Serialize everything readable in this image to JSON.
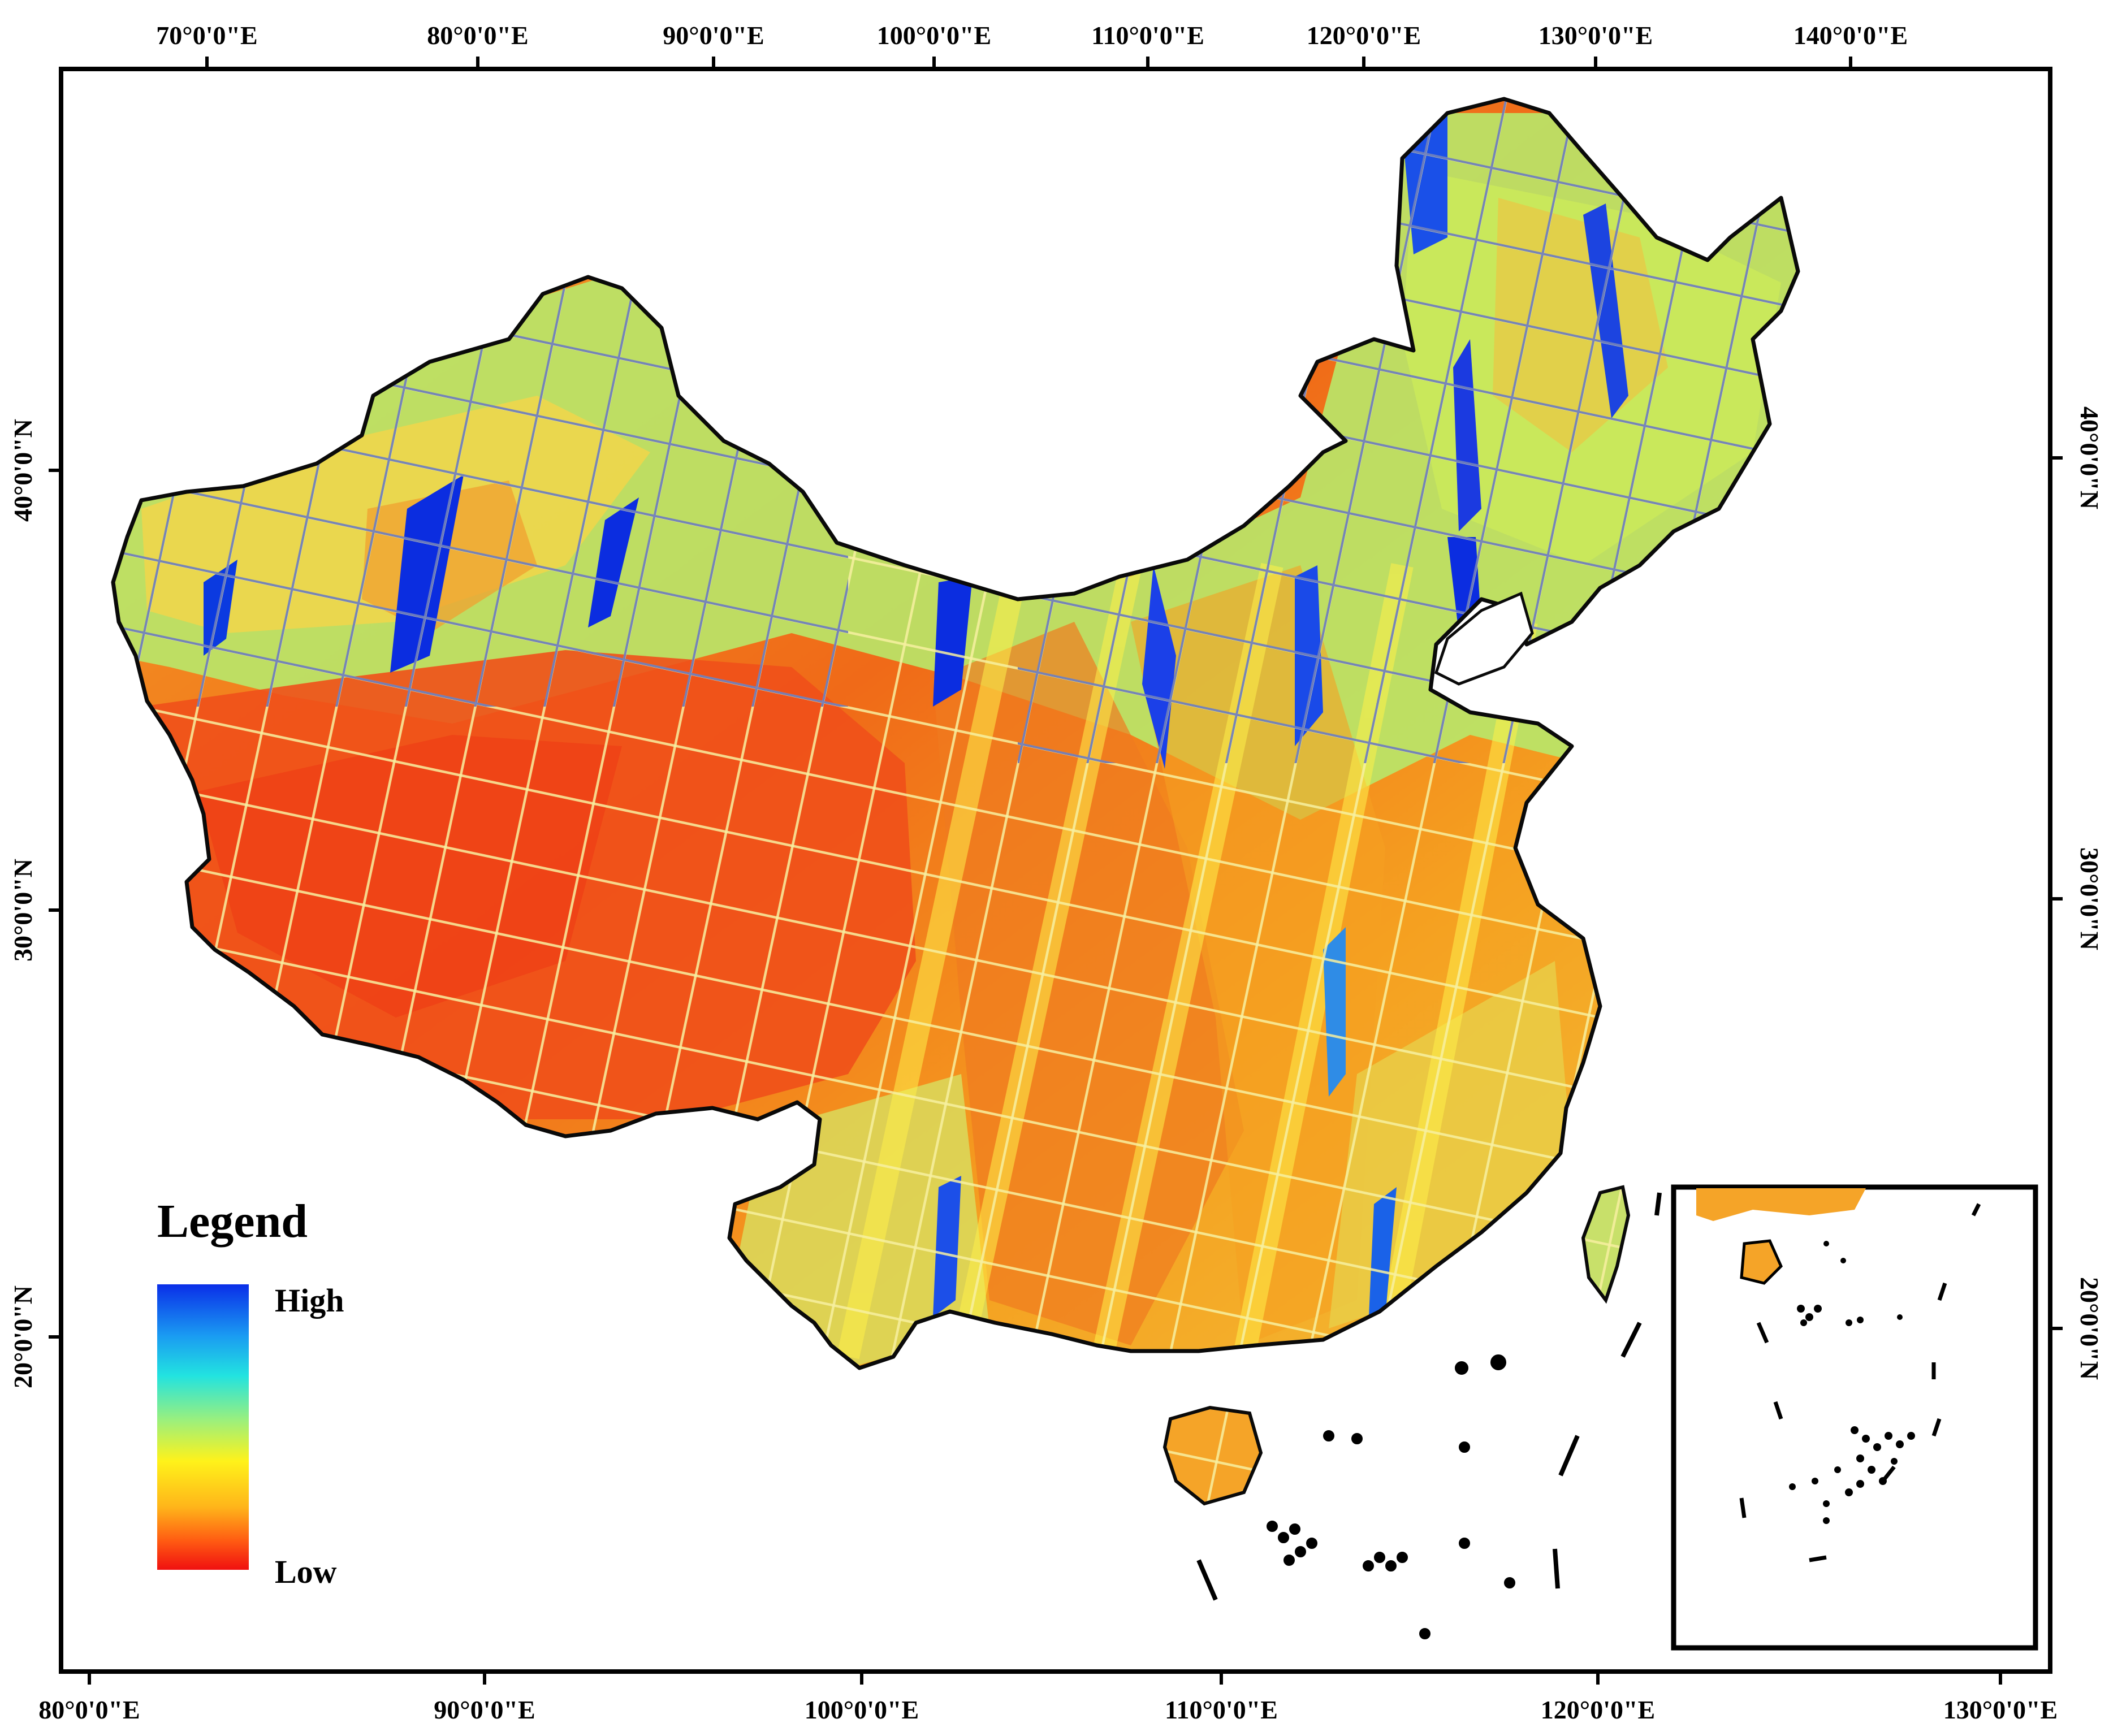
{
  "map": {
    "top_lon_labels": [
      "70°0'0\"E",
      "80°0'0\"E",
      "90°0'0\"E",
      "100°0'0\"E",
      "110°0'0\"E",
      "120°0'0\"E",
      "130°0'0\"E",
      "140°0'0\"E"
    ],
    "bottom_lon_labels": [
      "80°0'0\"E",
      "90°0'0\"E",
      "100°0'0\"E",
      "110°0'0\"E",
      "120°0'0\"E",
      "130°0'0\"E"
    ],
    "left_lat_labels": [
      "40°0'0\"N",
      "30°0'0\"N",
      "20°0'0\"N"
    ],
    "right_lat_labels": [
      "40°0'0\"N",
      "30°0'0\"N",
      "20°0'0\"N"
    ]
  },
  "legend": {
    "title": "Legend",
    "high_label": "High",
    "low_label": "Low",
    "colors": [
      "#0a2ee8",
      "#1a9bf2",
      "#22e3e0",
      "#9ef07a",
      "#fff21a",
      "#ffb51a",
      "#ff5a12",
      "#f01010"
    ]
  },
  "colors": {
    "frame": "#000000",
    "border": "#0a0a0a",
    "low_red": "#f04a14",
    "mid_orange": "#f5a020",
    "mid_yellow": "#f2e83a",
    "mid_green": "#a8e870",
    "high_cyan": "#48d8d0",
    "high_blue": "#0b2de0"
  }
}
